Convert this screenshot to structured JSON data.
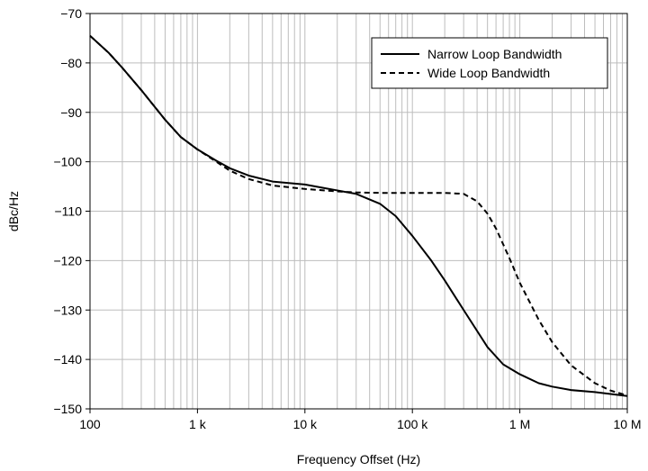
{
  "chart_data": {
    "type": "line",
    "title": "",
    "xlabel": "Frequency Offset (Hz)",
    "ylabel": "dBc/Hz",
    "xscale": "log",
    "xlim": [
      100,
      10000000
    ],
    "ylim": [
      -150,
      -70
    ],
    "grid": true,
    "legend_position": "top-right",
    "x_ticks": [
      {
        "value": 100,
        "label": "100"
      },
      {
        "value": 1000,
        "label": "1 k"
      },
      {
        "value": 10000,
        "label": "10 k"
      },
      {
        "value": 100000,
        "label": "100 k"
      },
      {
        "value": 1000000,
        "label": "1 M"
      },
      {
        "value": 10000000,
        "label": "10 M"
      }
    ],
    "y_ticks": [
      {
        "value": -70,
        "label": "−70"
      },
      {
        "value": -80,
        "label": "−80"
      },
      {
        "value": -90,
        "label": "−90"
      },
      {
        "value": -100,
        "label": "−100"
      },
      {
        "value": -110,
        "label": "−110"
      },
      {
        "value": -120,
        "label": "−120"
      },
      {
        "value": -130,
        "label": "−130"
      },
      {
        "value": -140,
        "label": "−140"
      },
      {
        "value": -150,
        "label": "−150"
      }
    ],
    "series": [
      {
        "name": "Narrow Loop Bandwidth",
        "style": "solid",
        "color": "#000000",
        "points": [
          [
            100,
            -74.5
          ],
          [
            150,
            -78
          ],
          [
            200,
            -81
          ],
          [
            300,
            -85.5
          ],
          [
            500,
            -91.5
          ],
          [
            700,
            -95
          ],
          [
            1000,
            -97.5
          ],
          [
            1500,
            -99.8
          ],
          [
            2000,
            -101.3
          ],
          [
            3000,
            -102.8
          ],
          [
            5000,
            -104
          ],
          [
            10000,
            -104.6
          ],
          [
            15000,
            -105.3
          ],
          [
            20000,
            -105.8
          ],
          [
            30000,
            -106.5
          ],
          [
            50000,
            -108.5
          ],
          [
            70000,
            -111
          ],
          [
            100000,
            -115
          ],
          [
            150000,
            -120
          ],
          [
            200000,
            -124
          ],
          [
            300000,
            -130
          ],
          [
            500000,
            -137.5
          ],
          [
            700000,
            -141
          ],
          [
            1000000,
            -143
          ],
          [
            1500000,
            -144.8
          ],
          [
            2000000,
            -145.5
          ],
          [
            3000000,
            -146.2
          ],
          [
            5000000,
            -146.6
          ],
          [
            7000000,
            -147
          ],
          [
            10000000,
            -147.4
          ]
        ]
      },
      {
        "name": "Wide Loop Bandwidth",
        "style": "dashed",
        "color": "#000000",
        "points": [
          [
            100,
            -74.5
          ],
          [
            150,
            -78
          ],
          [
            200,
            -81
          ],
          [
            300,
            -85.5
          ],
          [
            500,
            -91.5
          ],
          [
            700,
            -95
          ],
          [
            1000,
            -97.5
          ],
          [
            1500,
            -100
          ],
          [
            2000,
            -101.8
          ],
          [
            3000,
            -103.5
          ],
          [
            5000,
            -104.8
          ],
          [
            10000,
            -105.5
          ],
          [
            20000,
            -106
          ],
          [
            30000,
            -106.2
          ],
          [
            50000,
            -106.3
          ],
          [
            100000,
            -106.3
          ],
          [
            200000,
            -106.3
          ],
          [
            300000,
            -106.5
          ],
          [
            400000,
            -108
          ],
          [
            500000,
            -110.5
          ],
          [
            600000,
            -113.5
          ],
          [
            800000,
            -119.5
          ],
          [
            1000000,
            -124.5
          ],
          [
            1500000,
            -132
          ],
          [
            2000000,
            -136.5
          ],
          [
            3000000,
            -141.2
          ],
          [
            5000000,
            -144.8
          ],
          [
            7000000,
            -146.3
          ],
          [
            10000000,
            -147.3
          ]
        ]
      }
    ]
  }
}
